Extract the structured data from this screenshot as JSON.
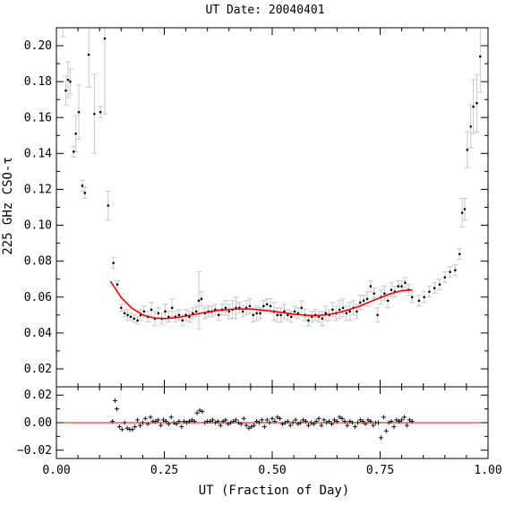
{
  "chart_data": [
    {
      "panel": "main",
      "type": "scatter",
      "title": "UT Date: 20040401",
      "xlabel": "UT (Fraction of Day)",
      "ylabel": "225 GHz CSO-τ",
      "xlim": [
        0,
        1
      ],
      "ylim": [
        0.01,
        0.21
      ],
      "xticks": [
        0,
        0.25,
        0.5,
        0.75,
        1
      ],
      "xtick_labels": [
        "0.00",
        "0.25",
        "0.50",
        "0.75",
        "1.00"
      ],
      "yticks": [
        0.02,
        0.04,
        0.06,
        0.08,
        0.1,
        0.12,
        0.14,
        0.16,
        0.18,
        0.2
      ],
      "ytick_labels": [
        "0.02",
        "0.04",
        "0.06",
        "0.08",
        "0.10",
        "0.12",
        "0.14",
        "0.16",
        "0.18",
        "0.20"
      ],
      "grid": false,
      "colors": {
        "points": "#000000",
        "errorbars": "#c8c8c8",
        "fit": "#ff0000"
      },
      "points": [
        [
          0.015,
          0.214,
          0.009
        ],
        [
          0.022,
          0.175,
          0.008
        ],
        [
          0.027,
          0.181,
          0.01
        ],
        [
          0.032,
          0.18,
          0.007
        ],
        [
          0.04,
          0.141,
          0.003
        ],
        [
          0.045,
          0.151,
          0.01
        ],
        [
          0.052,
          0.163,
          0.015
        ],
        [
          0.06,
          0.122,
          0.003
        ],
        [
          0.066,
          0.118,
          0.003
        ],
        [
          0.075,
          0.195,
          0.018
        ],
        [
          0.088,
          0.162,
          0.022
        ],
        [
          0.102,
          0.163,
          0.003
        ],
        [
          0.112,
          0.204,
          0.042
        ],
        [
          0.12,
          0.111,
          0.008
        ],
        [
          0.132,
          0.079,
          0.003
        ],
        [
          0.141,
          0.067,
          0.002
        ],
        [
          0.15,
          0.054,
          0.002
        ],
        [
          0.158,
          0.051,
          0.002
        ],
        [
          0.165,
          0.05,
          0.003
        ],
        [
          0.172,
          0.049,
          0.002
        ],
        [
          0.18,
          0.048,
          0.002
        ],
        [
          0.188,
          0.047,
          0.002
        ],
        [
          0.195,
          0.05,
          0.003
        ],
        [
          0.203,
          0.052,
          0.003
        ],
        [
          0.212,
          0.049,
          0.003
        ],
        [
          0.22,
          0.053,
          0.004
        ],
        [
          0.228,
          0.048,
          0.004
        ],
        [
          0.236,
          0.051,
          0.003
        ],
        [
          0.244,
          0.048,
          0.003
        ],
        [
          0.252,
          0.052,
          0.004
        ],
        [
          0.26,
          0.049,
          0.003
        ],
        [
          0.268,
          0.054,
          0.005
        ],
        [
          0.276,
          0.049,
          0.003
        ],
        [
          0.284,
          0.05,
          0.003
        ],
        [
          0.292,
          0.047,
          0.003
        ],
        [
          0.3,
          0.05,
          0.003
        ],
        [
          0.308,
          0.049,
          0.003
        ],
        [
          0.316,
          0.051,
          0.003
        ],
        [
          0.324,
          0.052,
          0.003
        ],
        [
          0.33,
          0.058,
          0.016
        ],
        [
          0.336,
          0.059,
          0.004
        ],
        [
          0.344,
          0.051,
          0.003
        ],
        [
          0.352,
          0.052,
          0.003
        ],
        [
          0.36,
          0.052,
          0.003
        ],
        [
          0.368,
          0.053,
          0.003
        ],
        [
          0.376,
          0.05,
          0.003
        ],
        [
          0.384,
          0.053,
          0.003
        ],
        [
          0.392,
          0.054,
          0.004
        ],
        [
          0.4,
          0.052,
          0.004
        ],
        [
          0.408,
          0.053,
          0.005
        ],
        [
          0.416,
          0.054,
          0.006
        ],
        [
          0.424,
          0.054,
          0.003
        ],
        [
          0.432,
          0.052,
          0.003
        ],
        [
          0.44,
          0.054,
          0.004
        ],
        [
          0.448,
          0.055,
          0.004
        ],
        [
          0.456,
          0.05,
          0.004
        ],
        [
          0.464,
          0.051,
          0.004
        ],
        [
          0.472,
          0.051,
          0.003
        ],
        [
          0.48,
          0.055,
          0.003
        ],
        [
          0.488,
          0.056,
          0.003
        ],
        [
          0.496,
          0.055,
          0.004
        ],
        [
          0.504,
          0.052,
          0.005
        ],
        [
          0.512,
          0.05,
          0.004
        ],
        [
          0.52,
          0.05,
          0.004
        ],
        [
          0.528,
          0.052,
          0.004
        ],
        [
          0.536,
          0.05,
          0.003
        ],
        [
          0.544,
          0.049,
          0.003
        ],
        [
          0.552,
          0.052,
          0.003
        ],
        [
          0.56,
          0.051,
          0.003
        ],
        [
          0.568,
          0.054,
          0.004
        ],
        [
          0.576,
          0.05,
          0.003
        ],
        [
          0.584,
          0.047,
          0.003
        ],
        [
          0.592,
          0.049,
          0.003
        ],
        [
          0.6,
          0.05,
          0.003
        ],
        [
          0.608,
          0.049,
          0.003
        ],
        [
          0.616,
          0.048,
          0.004
        ],
        [
          0.624,
          0.051,
          0.004
        ],
        [
          0.632,
          0.05,
          0.003
        ],
        [
          0.64,
          0.053,
          0.004
        ],
        [
          0.648,
          0.051,
          0.004
        ],
        [
          0.656,
          0.053,
          0.005
        ],
        [
          0.664,
          0.054,
          0.005
        ],
        [
          0.672,
          0.051,
          0.004
        ],
        [
          0.68,
          0.052,
          0.005
        ],
        [
          0.688,
          0.054,
          0.004
        ],
        [
          0.696,
          0.052,
          0.004
        ],
        [
          0.704,
          0.057,
          0.004
        ],
        [
          0.712,
          0.058,
          0.003
        ],
        [
          0.72,
          0.059,
          0.004
        ],
        [
          0.728,
          0.066,
          0.003
        ],
        [
          0.736,
          0.062,
          0.003
        ],
        [
          0.744,
          0.05,
          0.004
        ],
        [
          0.752,
          0.06,
          0.004
        ],
        [
          0.76,
          0.062,
          0.004
        ],
        [
          0.768,
          0.058,
          0.004
        ],
        [
          0.776,
          0.064,
          0.004
        ],
        [
          0.784,
          0.063,
          0.003
        ],
        [
          0.792,
          0.066,
          0.003
        ],
        [
          0.8,
          0.066,
          0.003
        ],
        [
          0.808,
          0.068,
          0.003
        ],
        [
          0.816,
          0.064,
          0.003
        ],
        [
          0.824,
          0.06,
          0.003
        ],
        [
          0.84,
          0.058,
          0.003
        ],
        [
          0.852,
          0.06,
          0.003
        ],
        [
          0.864,
          0.063,
          0.003
        ],
        [
          0.876,
          0.065,
          0.003
        ],
        [
          0.888,
          0.067,
          0.003
        ],
        [
          0.9,
          0.071,
          0.003
        ],
        [
          0.912,
          0.074,
          0.003
        ],
        [
          0.924,
          0.075,
          0.003
        ],
        [
          0.934,
          0.084,
          0.003
        ],
        [
          0.94,
          0.107,
          0.008
        ],
        [
          0.946,
          0.109,
          0.006
        ],
        [
          0.952,
          0.142,
          0.01
        ],
        [
          0.96,
          0.155,
          0.012
        ],
        [
          0.966,
          0.166,
          0.015
        ],
        [
          0.974,
          0.168,
          0.016
        ],
        [
          0.982,
          0.194,
          0.02
        ]
      ],
      "fit": [
        [
          0.125,
          0.0688
        ],
        [
          0.15,
          0.0598
        ],
        [
          0.175,
          0.0538
        ],
        [
          0.2,
          0.0501
        ],
        [
          0.225,
          0.0484
        ],
        [
          0.25,
          0.048
        ],
        [
          0.275,
          0.0485
        ],
        [
          0.3,
          0.0494
        ],
        [
          0.325,
          0.0506
        ],
        [
          0.35,
          0.0517
        ],
        [
          0.375,
          0.0526
        ],
        [
          0.4,
          0.0531
        ],
        [
          0.425,
          0.0534
        ],
        [
          0.45,
          0.0533
        ],
        [
          0.475,
          0.0528
        ],
        [
          0.5,
          0.0521
        ],
        [
          0.525,
          0.0513
        ],
        [
          0.55,
          0.0505
        ],
        [
          0.575,
          0.0499
        ],
        [
          0.6,
          0.0497
        ],
        [
          0.625,
          0.0501
        ],
        [
          0.65,
          0.0512
        ],
        [
          0.675,
          0.0528
        ],
        [
          0.7,
          0.0548
        ],
        [
          0.725,
          0.0572
        ],
        [
          0.75,
          0.0597
        ],
        [
          0.775,
          0.0619
        ],
        [
          0.8,
          0.0636
        ],
        [
          0.825,
          0.064
        ]
      ]
    },
    {
      "panel": "residuals",
      "type": "scatter",
      "xlim": [
        0,
        1
      ],
      "ylim": [
        -0.026,
        0.026
      ],
      "yticks": [
        -0.02,
        0,
        0.02
      ],
      "ytick_labels": [
        "−0.02",
        "0.00",
        "0.02"
      ],
      "colors": {
        "points": "#000000",
        "zero_line": "#ff0000"
      },
      "zero_line": 0,
      "points": [
        [
          0.13,
          0.001
        ],
        [
          0.136,
          0.016
        ],
        [
          0.14,
          0.01
        ],
        [
          0.146,
          -0.003
        ],
        [
          0.152,
          -0.005
        ],
        [
          0.158,
          0.0
        ],
        [
          0.164,
          -0.004
        ],
        [
          0.17,
          -0.005
        ],
        [
          0.176,
          -0.005
        ],
        [
          0.182,
          -0.003
        ],
        [
          0.188,
          0.002
        ],
        [
          0.194,
          -0.002
        ],
        [
          0.2,
          0.0
        ],
        [
          0.206,
          0.003
        ],
        [
          0.212,
          -0.001
        ],
        [
          0.218,
          0.004
        ],
        [
          0.224,
          0.001
        ],
        [
          0.23,
          0.001
        ],
        [
          0.236,
          0.002
        ],
        [
          0.242,
          -0.002
        ],
        [
          0.248,
          0.002
        ],
        [
          0.254,
          0.001
        ],
        [
          0.26,
          -0.001
        ],
        [
          0.266,
          0.004
        ],
        [
          0.272,
          0.0
        ],
        [
          0.278,
          -0.001
        ],
        [
          0.284,
          0.001
        ],
        [
          0.29,
          -0.003
        ],
        [
          0.296,
          0.001
        ],
        [
          0.302,
          0.0
        ],
        [
          0.308,
          0.001
        ],
        [
          0.314,
          0.002
        ],
        [
          0.32,
          0.001
        ],
        [
          0.326,
          0.007
        ],
        [
          0.332,
          0.009
        ],
        [
          0.338,
          0.008
        ],
        [
          0.344,
          0.0
        ],
        [
          0.35,
          0.001
        ],
        [
          0.356,
          0.001
        ],
        [
          0.362,
          0.002
        ],
        [
          0.368,
          0.0
        ],
        [
          0.374,
          0.001
        ],
        [
          0.38,
          -0.002
        ],
        [
          0.386,
          0.001
        ],
        [
          0.392,
          0.002
        ],
        [
          0.398,
          -0.001
        ],
        [
          0.404,
          0.0
        ],
        [
          0.41,
          0.001
        ],
        [
          0.416,
          0.002
        ],
        [
          0.422,
          0.0
        ],
        [
          0.428,
          -0.001
        ],
        [
          0.434,
          0.003
        ],
        [
          0.44,
          -0.002
        ],
        [
          0.446,
          -0.004
        ],
        [
          0.452,
          -0.003
        ],
        [
          0.458,
          -0.002
        ],
        [
          0.464,
          0.001
        ],
        [
          0.47,
          0.0
        ],
        [
          0.476,
          0.002
        ],
        [
          0.482,
          -0.003
        ],
        [
          0.488,
          0.002
        ],
        [
          0.494,
          0.0
        ],
        [
          0.5,
          0.003
        ],
        [
          0.506,
          0.001
        ],
        [
          0.512,
          0.004
        ],
        [
          0.518,
          0.003
        ],
        [
          0.524,
          -0.001
        ],
        [
          0.53,
          0.0
        ],
        [
          0.536,
          0.001
        ],
        [
          0.542,
          -0.002
        ],
        [
          0.548,
          0.0
        ],
        [
          0.554,
          0.002
        ],
        [
          0.56,
          -0.001
        ],
        [
          0.566,
          0.0
        ],
        [
          0.572,
          0.002
        ],
        [
          0.578,
          0.001
        ],
        [
          0.584,
          -0.002
        ],
        [
          0.59,
          0.0
        ],
        [
          0.596,
          -0.001
        ],
        [
          0.602,
          0.001
        ],
        [
          0.608,
          0.003
        ],
        [
          0.614,
          -0.002
        ],
        [
          0.62,
          0.002
        ],
        [
          0.626,
          0.0
        ],
        [
          0.632,
          0.001
        ],
        [
          0.638,
          -0.001
        ],
        [
          0.644,
          0.002
        ],
        [
          0.65,
          0.001
        ],
        [
          0.656,
          0.004
        ],
        [
          0.662,
          0.003
        ],
        [
          0.668,
          0.001
        ],
        [
          0.674,
          -0.002
        ],
        [
          0.68,
          0.001
        ],
        [
          0.686,
          0.0
        ],
        [
          0.692,
          -0.003
        ],
        [
          0.698,
          0.0
        ],
        [
          0.704,
          0.002
        ],
        [
          0.71,
          0.001
        ],
        [
          0.716,
          -0.001
        ],
        [
          0.722,
          0.002
        ],
        [
          0.728,
          0.001
        ],
        [
          0.734,
          -0.002
        ],
        [
          0.74,
          0.0
        ],
        [
          0.746,
          0.0
        ],
        [
          0.752,
          -0.011
        ],
        [
          0.758,
          0.004
        ],
        [
          0.764,
          -0.006
        ],
        [
          0.77,
          0.0
        ],
        [
          0.776,
          0.001
        ],
        [
          0.782,
          -0.003
        ],
        [
          0.788,
          0.002
        ],
        [
          0.794,
          0.001
        ],
        [
          0.8,
          0.002
        ],
        [
          0.806,
          0.004
        ],
        [
          0.812,
          -0.002
        ],
        [
          0.818,
          0.002
        ],
        [
          0.824,
          0.001
        ]
      ]
    }
  ]
}
